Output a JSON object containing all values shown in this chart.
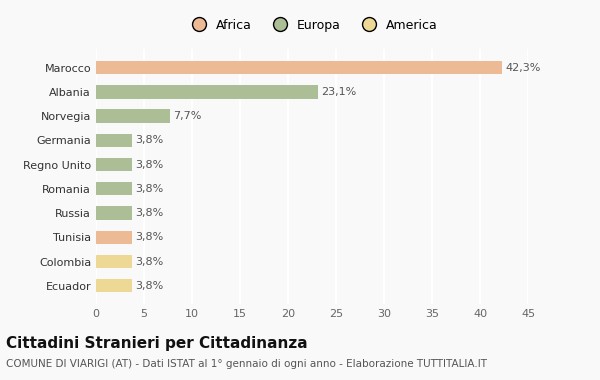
{
  "categories": [
    "Marocco",
    "Albania",
    "Norvegia",
    "Germania",
    "Regno Unito",
    "Romania",
    "Russia",
    "Tunisia",
    "Colombia",
    "Ecuador"
  ],
  "values": [
    42.3,
    23.1,
    7.7,
    3.8,
    3.8,
    3.8,
    3.8,
    3.8,
    3.8,
    3.8
  ],
  "labels": [
    "42,3%",
    "23,1%",
    "7,7%",
    "3,8%",
    "3,8%",
    "3,8%",
    "3,8%",
    "3,8%",
    "3,8%",
    "3,8%"
  ],
  "bar_colors": [
    "#EDBA96",
    "#ABBE96",
    "#ABBE96",
    "#ABBE96",
    "#ABBE96",
    "#ABBE96",
    "#ABBE96",
    "#EDBA96",
    "#EDD896",
    "#EDD896"
  ],
  "legend": [
    {
      "label": "Africa",
      "color": "#EDBA96"
    },
    {
      "label": "Europa",
      "color": "#ABBE96"
    },
    {
      "label": "America",
      "color": "#EDD896"
    }
  ],
  "xlim": [
    0,
    45
  ],
  "xticks": [
    0,
    5,
    10,
    15,
    20,
    25,
    30,
    35,
    40,
    45
  ],
  "title": "Cittadini Stranieri per Cittadinanza",
  "subtitle": "COMUNE DI VIARIGI (AT) - Dati ISTAT al 1° gennaio di ogni anno - Elaborazione TUTTITALIA.IT",
  "background_color": "#f9f9f9",
  "plot_bg_color": "#f9f9f9",
  "grid_color": "#ffffff",
  "title_fontsize": 11,
  "subtitle_fontsize": 7.5,
  "tick_fontsize": 8,
  "label_fontsize": 8
}
